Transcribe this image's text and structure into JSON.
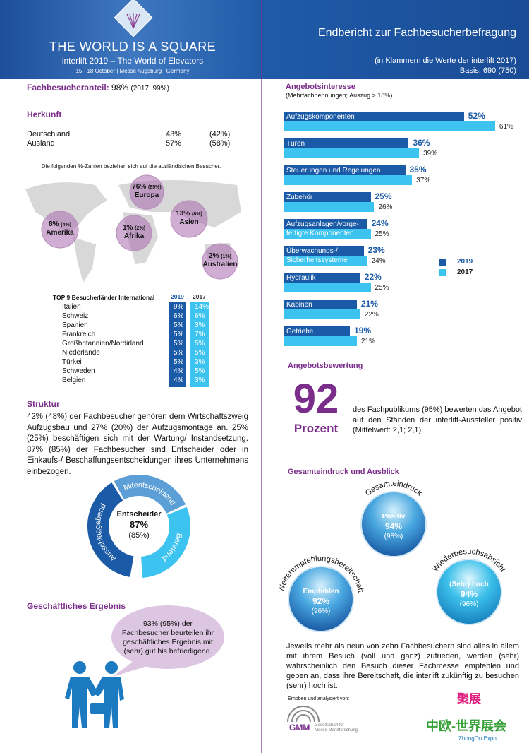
{
  "header": {
    "logo_title": "THE WORLD IS A SQUARE",
    "logo_sub": "interlift 2019 – The World of Elevators",
    "logo_date": "15 - 18 October | Messe Augsburg | Germany",
    "title": "Endbericht zur Fachbesucherbefragung",
    "note": "(in Klammern die Werte der interlift 2017)",
    "basis": "Basis: 690 (750)"
  },
  "fachbesucheranteil": {
    "label": "Fachbesucheranteil:",
    "value": "98%",
    "prev": "(2017: 99%)"
  },
  "herkunft": {
    "title": "Herkunft",
    "rows": [
      [
        "Deutschland",
        "43%",
        "(42%)"
      ],
      [
        "Ausland",
        "57%",
        "(58%)"
      ]
    ],
    "note": "Die folgenden %-Zahlen beziehen sich auf die ausländischen Besucher."
  },
  "regions": [
    {
      "value": "76%",
      "prev": "(85%)",
      "name": "Europa"
    },
    {
      "value": "8%",
      "prev": "(4%)",
      "name": "Amerika"
    },
    {
      "value": "1%",
      "prev": "(2%)",
      "name": "Afrika"
    },
    {
      "value": "13%",
      "prev": "(8%)",
      "name": "Asien"
    },
    {
      "value": "2%",
      "prev": "(1%)",
      "name": "Australien"
    }
  ],
  "top9": {
    "title": "TOP 9 Besucherländer International",
    "columns": [
      "2019",
      "2017"
    ],
    "rows": [
      [
        "Italien",
        "9%",
        "14%"
      ],
      [
        "Schweiz",
        "6%",
        "6%"
      ],
      [
        "Spanien",
        "5%",
        "3%"
      ],
      [
        "Frankreich",
        "5%",
        "7%"
      ],
      [
        "Großbritannien/Nordirland",
        "5%",
        "5%"
      ],
      [
        "Niederlande",
        "5%",
        "5%"
      ],
      [
        "Türkei",
        "5%",
        "3%"
      ],
      [
        "Schweden",
        "4%",
        "5%"
      ],
      [
        "Belgien",
        "4%",
        "3%"
      ]
    ]
  },
  "struktur": {
    "title": "Struktur",
    "text": "42% (48%) der Fachbesucher gehören dem Wirtschaftszweig Aufzugsbau und 27% (20%) der Aufzugsmontage an. 25% (25%) beschäftigen sich mit der Wartung/ Instandsetzung. 87% (85%) der Fachbesucher sind Entscheider oder in Einkaufs-/ Beschaffungsentscheidungen ihres Unternehmens einbezogen.",
    "donut": {
      "center_label": "Entscheider",
      "center_value": "87%",
      "center_prev": "(85%)",
      "segments": [
        "Ausschlaggebend",
        "Mitentscheidend",
        "Beratend"
      ]
    }
  },
  "ergebnis": {
    "title": "Geschäftliches Ergebnis",
    "text": "93% (95%) der Fachbesucher beurteilen ihr geschäftliches Ergebnis mit (sehr) gut bis befriedigend."
  },
  "angebotsinteresse": {
    "title": "Angebotsinteresse",
    "subtitle": "(Mehrfachnennungen; Auszug > 18%)",
    "categories": [
      "Aufzugskomponenten",
      "Türen",
      "Steuerungen und Regelungen",
      "Zubehör",
      "Aufzugsanlagen/vorge-\nfertigte Komponenten",
      "Überwachungs-/\nSicherheitssysteme",
      "Hydraulik",
      "Kabinen",
      "Getriebe"
    ],
    "series": [
      {
        "name": "2019",
        "color": "#1b5aa6",
        "values": [
          52,
          36,
          35,
          25,
          24,
          23,
          22,
          21,
          19
        ],
        "value_labels": [
          "52%",
          "36%",
          "35%",
          "25%",
          "24%",
          "23%",
          "22%",
          "21%",
          "19%"
        ]
      },
      {
        "name": "2017",
        "color": "#3cc3ef",
        "values": [
          61,
          39,
          37,
          26,
          25,
          24,
          25,
          22,
          21
        ],
        "value_labels": [
          "61%",
          "39%",
          "37%",
          "26%",
          "25%",
          "24%",
          "25%",
          "22%",
          "21%"
        ]
      }
    ]
  },
  "bewertung": {
    "title": "Angebotsbewertung",
    "value": "92",
    "unit": "Prozent",
    "text": "des Fachpublikums (95%) bewerten das Angebot auf den Ständen der interlift-Aussteller positiv (Mittelwert: 2,1; 2,1)."
  },
  "gesamteindruck": {
    "title": "Gesamteindruck und Ausblick",
    "bubbles": [
      {
        "arc": "Gesamteindruck",
        "label": "Positiv",
        "value": "94%",
        "prev": "(98%)"
      },
      {
        "arc": "Weiterempfehlungsbereitschaft",
        "label": "Empfehlen",
        "value": "92%",
        "prev": "(96%)"
      },
      {
        "arc": "Wiederbesuchsabsicht",
        "label": "(Sehr) hoch",
        "value": "94%",
        "prev": "(96%)"
      }
    ],
    "text": "Jeweils mehr als neun von zehn Fachbesuchern sind alles in allem mit ihrem Besuch (voll und ganz) zufrieden, werden (sehr) wahrscheinlich den Besuch dieser Fachmesse empfehlen und geben an, dass ihre Bereitschaft, die interlift zukünftig zu besuchen (sehr) hoch ist."
  },
  "footer": {
    "note": "Erhoben und analysiert von:",
    "logo": "GMM",
    "logo_sub": "Gesellschaft für Messe-Marktforschung"
  },
  "watermark": {
    "top": "聚展",
    "main": "中欧-世界展会",
    "sub": "ZhongOu Expo"
  }
}
